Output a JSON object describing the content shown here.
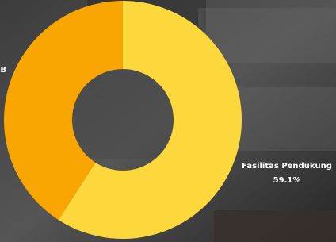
{
  "chart_data": {
    "type": "pie",
    "categories": [
      "B",
      "Fasilitas Pendukung"
    ],
    "values": [
      40.9,
      59.1
    ],
    "value_labels": [
      null,
      "59.1%"
    ],
    "colors": [
      "#f9a602",
      "#fdd83d"
    ]
  }
}
